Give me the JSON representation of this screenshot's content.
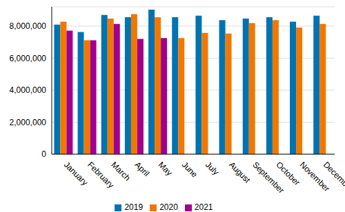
{
  "chart_data": {
    "type": "bar",
    "categories": [
      "January",
      "February",
      "March",
      "April",
      "May",
      "June",
      "July",
      "August",
      "September",
      "October",
      "November",
      "December"
    ],
    "series": [
      {
        "name": "2019",
        "color": "#0073b0",
        "values": [
          8090000,
          7630000,
          8700000,
          8560000,
          9030000,
          8560000,
          8650000,
          8370000,
          8470000,
          8560000,
          8280000,
          8650000
        ]
      },
      {
        "name": "2020",
        "color": "#f07800",
        "values": [
          8280000,
          7110000,
          8470000,
          8750000,
          8560000,
          7250000,
          7580000,
          7530000,
          8190000,
          8370000,
          7910000,
          8140000
        ]
      },
      {
        "name": "2021",
        "color": "#a0008c",
        "values": [
          7720000,
          7110000,
          8140000,
          7200000,
          7250000,
          null,
          null,
          null,
          null,
          null,
          null,
          null
        ]
      }
    ],
    "ylim": [
      0,
      9200000
    ],
    "yticks": [
      0,
      {
        "value": 2000000,
        "label": "2,000,000"
      },
      {
        "value": 4000000,
        "label": "4,000,000"
      },
      {
        "value": 6000000,
        "label": "6,000,000"
      },
      {
        "value": 8000000,
        "label": "8,000,000"
      }
    ],
    "grid": true,
    "legend": "bottom"
  }
}
